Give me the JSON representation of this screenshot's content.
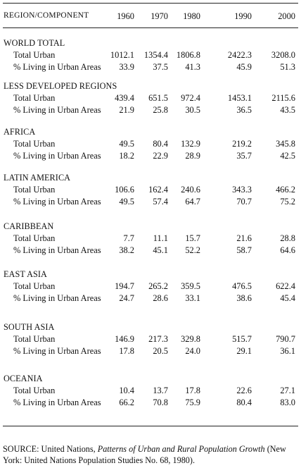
{
  "header": {
    "label": "REGION/COMPONENT",
    "years": [
      "1960",
      "1970",
      "1980",
      "1990",
      "2000"
    ]
  },
  "sections": [
    {
      "title": "WORLD TOTAL",
      "rows": [
        {
          "label": "Total Urban",
          "values": [
            "1012.1",
            "1354.4",
            "1806.8",
            "2422.3",
            "3208.0"
          ]
        },
        {
          "label": "% Living in Urban Areas",
          "values": [
            "33.9",
            "37.5",
            "41.3",
            "45.9",
            "51.3"
          ]
        }
      ]
    },
    {
      "title": "LESS DEVELOPED REGIONS",
      "rows": [
        {
          "label": "Total Urban",
          "values": [
            "439.4",
            "651.5",
            "972.4",
            "1453.1",
            "2115.6"
          ]
        },
        {
          "label": "% Living in Urban Areas",
          "values": [
            "21.9",
            "25.8",
            "30.5",
            "36.5",
            "43.5"
          ]
        }
      ]
    },
    {
      "title": "AFRICA",
      "rows": [
        {
          "label": "Total Urban",
          "values": [
            "49.5",
            "80.4",
            "132.9",
            "219.2",
            "345.8"
          ]
        },
        {
          "label": "% Living in Urban Areas",
          "values": [
            "18.2",
            "22.9",
            "28.9",
            "35.7",
            "42.5"
          ]
        }
      ]
    },
    {
      "title": "LATIN AMERICA",
      "rows": [
        {
          "label": "Total Urban",
          "values": [
            "106.6",
            "162.4",
            "240.6",
            "343.3",
            "466.2"
          ]
        },
        {
          "label": "% Living in Urban Areas",
          "values": [
            "49.5",
            "57.4",
            "64.7",
            "70.7",
            "75.2"
          ]
        }
      ]
    },
    {
      "title": "CARIBBEAN",
      "rows": [
        {
          "label": "Total Urban",
          "values": [
            "7.7",
            "11.1",
            "15.7",
            "21.6",
            "28.8"
          ]
        },
        {
          "label": "% Living in Urban Areas",
          "values": [
            "38.2",
            "45.1",
            "52.2",
            "58.7",
            "64.6"
          ]
        }
      ]
    },
    {
      "title": "EAST ASIA",
      "rows": [
        {
          "label": "Total Urban",
          "values": [
            "194.7",
            "265.2",
            "359.5",
            "476.5",
            "622.4"
          ]
        },
        {
          "label": "% Living in Urban Areas",
          "values": [
            "24.7",
            "28.6",
            "33.1",
            "38.6",
            "45.4"
          ]
        }
      ]
    },
    {
      "title": "SOUTH ASIA",
      "rows": [
        {
          "label": "Total Urban",
          "values": [
            "146.9",
            "217.3",
            "329.8",
            "515.7",
            "790.7"
          ]
        },
        {
          "label": "% Living in Urban Areas",
          "values": [
            "17.8",
            "20.5",
            "24.0",
            "29.1",
            "36.1"
          ]
        }
      ]
    },
    {
      "title": "OCEANIA",
      "rows": [
        {
          "label": "Total Urban",
          "values": [
            "10.4",
            "13.7",
            "17.8",
            "22.6",
            "27.1"
          ]
        },
        {
          "label": "% Living in Urban Areas",
          "values": [
            "66.2",
            "70.8",
            "75.9",
            "80.4",
            "83.0"
          ]
        }
      ]
    }
  ],
  "source": {
    "prefix": "SOURCE:  United Nations, ",
    "title": "Patterns of Urban and Rural Population Growth",
    "suffix": " (New York: United Nations Population Studies No. 68, 1980)."
  }
}
